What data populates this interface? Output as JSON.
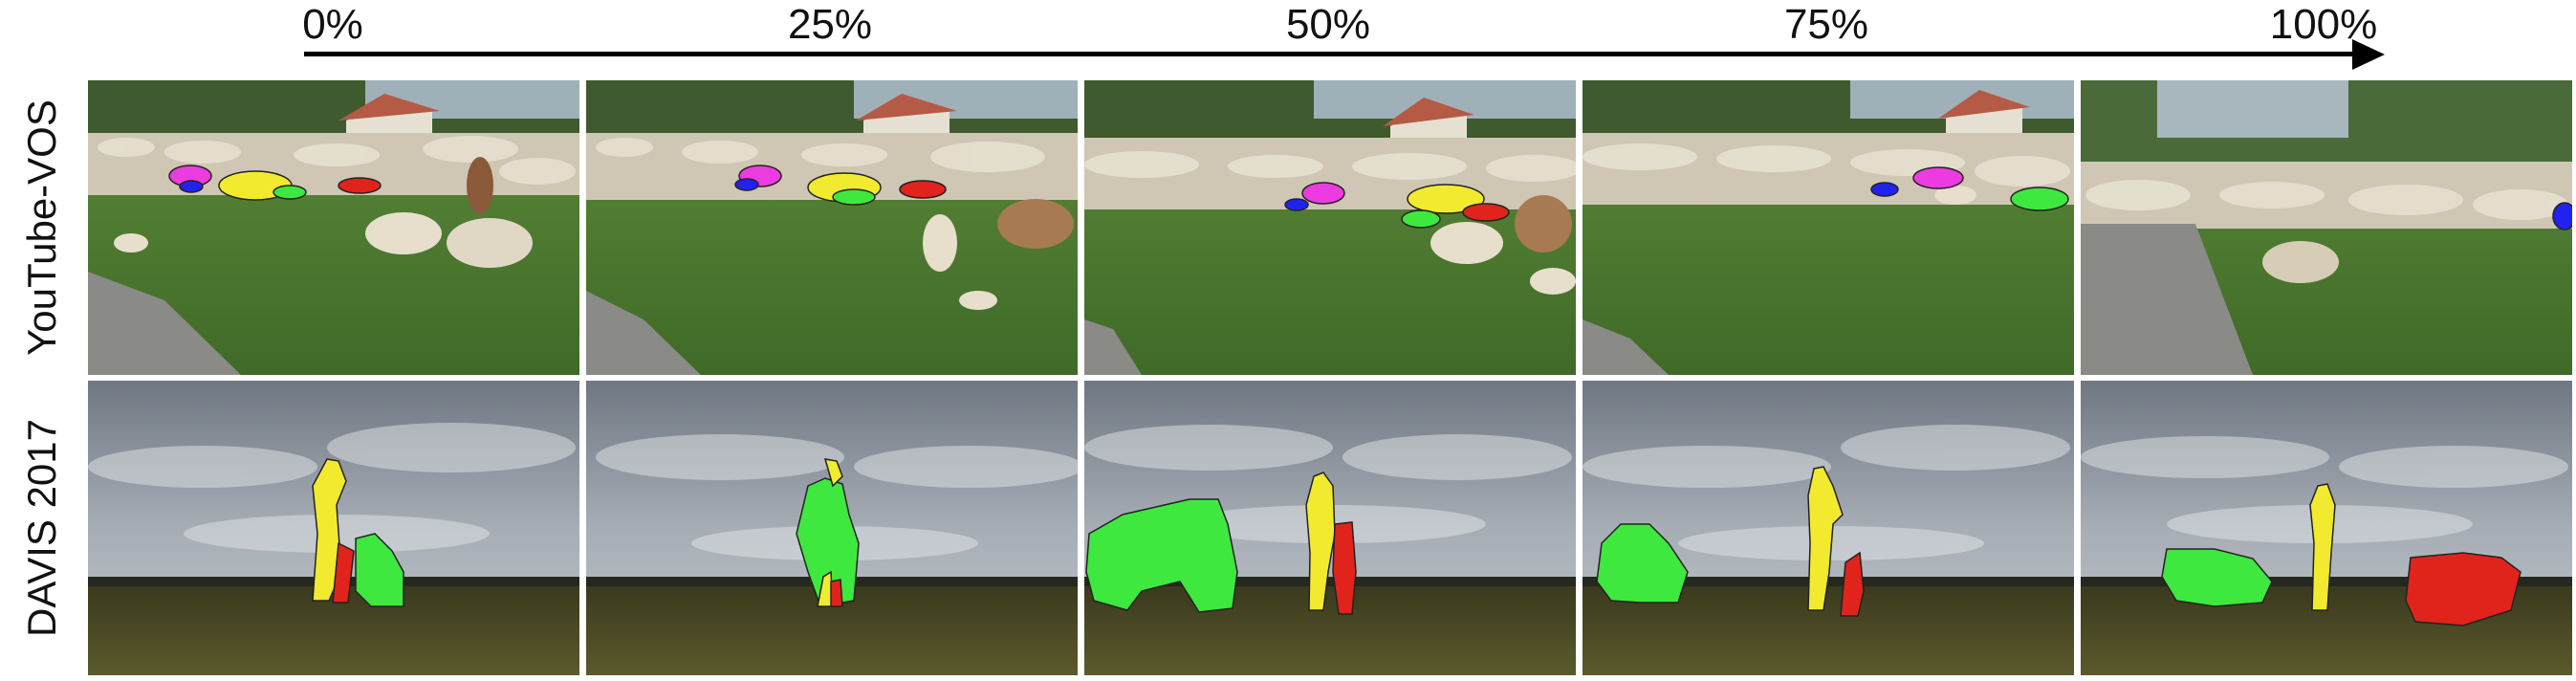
{
  "progress_labels": [
    "0%",
    "25%",
    "50%",
    "75%",
    "100%"
  ],
  "rows": [
    {
      "label": "YouTube-VOS",
      "scene": "sheep-field"
    },
    {
      "label": "DAVIS 2017",
      "scene": "cloudy-field"
    }
  ],
  "mask_colors": {
    "yellow": "#f2ea2e",
    "green": "#3ee83e",
    "red": "#e0241c",
    "magenta": "#ec3ce0",
    "blue": "#2222ee"
  }
}
